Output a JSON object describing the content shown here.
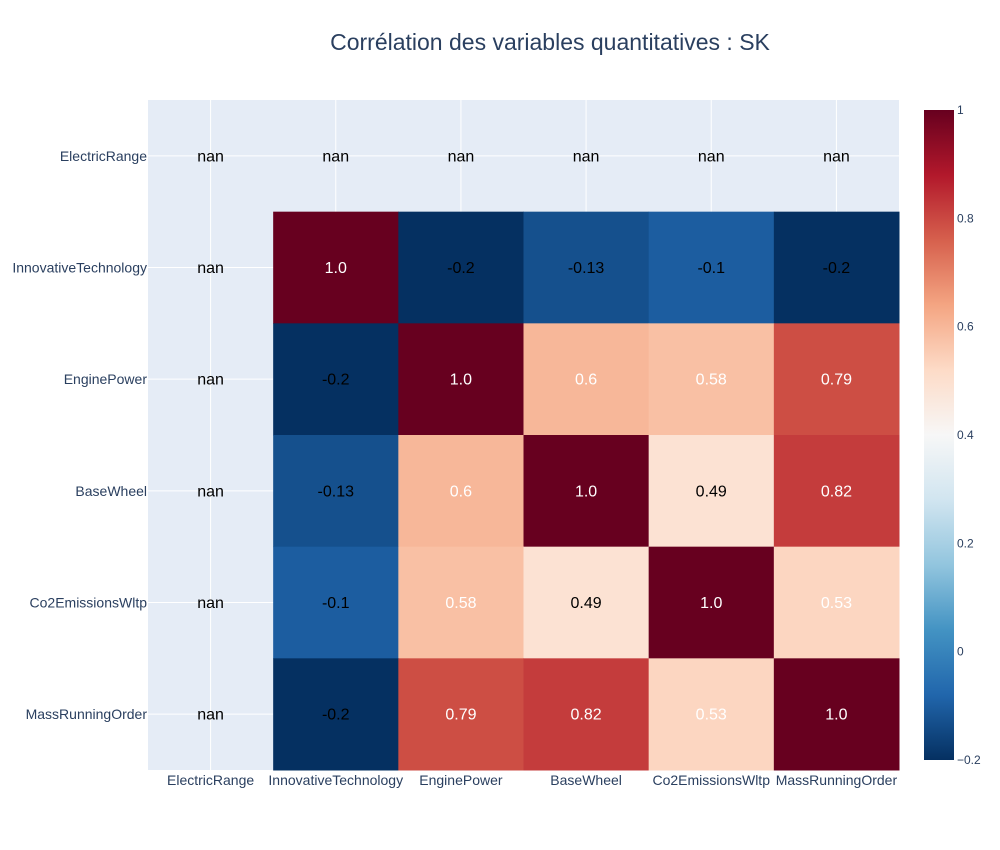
{
  "chart_data": {
    "type": "heatmap",
    "title": "Corrélation des variables quantitatives : SK",
    "x_categories": [
      "ElectricRange",
      "InnovativeTechnology",
      "EnginePower",
      "BaseWheel",
      "Co2EmissionsWltp",
      "MassRunningOrder"
    ],
    "y_categories": [
      "ElectricRange",
      "InnovativeTechnology",
      "EnginePower",
      "BaseWheel",
      "Co2EmissionsWltp",
      "MassRunningOrder"
    ],
    "values": [
      [
        null,
        null,
        null,
        null,
        null,
        null
      ],
      [
        null,
        1.0,
        -0.2,
        -0.13,
        -0.1,
        -0.2
      ],
      [
        null,
        -0.2,
        1.0,
        0.6,
        0.58,
        0.79
      ],
      [
        null,
        -0.13,
        0.6,
        1.0,
        0.49,
        0.82
      ],
      [
        null,
        -0.1,
        0.58,
        0.49,
        1.0,
        0.53
      ],
      [
        null,
        -0.2,
        0.79,
        0.82,
        0.53,
        1.0
      ]
    ],
    "text": [
      [
        "nan",
        "nan",
        "nan",
        "nan",
        "nan",
        "nan"
      ],
      [
        "nan",
        "1.0",
        "-0.2",
        "-0.13",
        "-0.1",
        "-0.2"
      ],
      [
        "nan",
        "-0.2",
        "1.0",
        "0.6",
        "0.58",
        "0.79"
      ],
      [
        "nan",
        "-0.13",
        "0.6",
        "1.0",
        "0.49",
        "0.82"
      ],
      [
        "nan",
        "-0.1",
        "0.58",
        "0.49",
        "1.0",
        "0.53"
      ],
      [
        "nan",
        "-0.2",
        "0.79",
        "0.82",
        "0.53",
        "1.0"
      ]
    ],
    "colorscale": "RdBu (reversed)",
    "zmin": -0.2,
    "zmax": 1.0,
    "colorbar_ticks": [
      {
        "value": 1.0,
        "label": "1"
      },
      {
        "value": 0.8,
        "label": "0.8"
      },
      {
        "value": 0.6,
        "label": "0.6"
      },
      {
        "value": 0.4,
        "label": "0.4"
      },
      {
        "value": 0.2,
        "label": "0.2"
      },
      {
        "value": 0.0,
        "label": "0"
      },
      {
        "value": -0.2,
        "label": "−0.2"
      }
    ],
    "colors": {
      "plot_background": "#e5ecf6",
      "gridline": "#ffffff",
      "text": "#2a3f5f"
    }
  }
}
